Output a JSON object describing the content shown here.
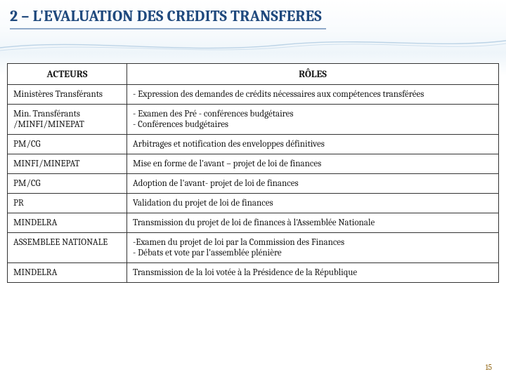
{
  "title": "2 – L'EVALUATION DES CREDITS TRANSFERES",
  "headers": {
    "actors": "ACTEURS",
    "roles": "RÔLES"
  },
  "rows": [
    {
      "actor": "Ministères Transférants",
      "role": "- Expression des demandes de crédits nécessaires aux compétences transférées"
    },
    {
      "actor": "Min. Transférants /MINFI/MINEPAT",
      "role": "- Examen des Pré - conférences budgétaires\n- Conférences budgétaires"
    },
    {
      "actor": "PM/CG",
      "role": " Arbitrages et notification des enveloppes définitives"
    },
    {
      "actor": "MINFI/MINEPAT",
      "role": "Mise en forme de l'avant – projet de loi de finances"
    },
    {
      "actor": "PM/CG",
      "role": "Adoption de l'avant- projet de loi de  finances"
    },
    {
      "actor": "PR",
      "role": " Validation du projet de loi de finances"
    },
    {
      "actor": "MINDELRA",
      "role": " Transmission du projet de loi de finances à l'Assemblée Nationale"
    },
    {
      "actor": "ASSEMBLEE NATIONALE",
      "role": "-Examen du projet de loi  par la Commission des Finances\n- Débats et vote par  l'assemblée plénière"
    },
    {
      "actor": "MINDELRA",
      "role": " Transmission de la loi votée à la Présidence de la République"
    }
  ],
  "page_number": "15",
  "colors": {
    "title": "#1f497d",
    "underline": "#8fa9c9",
    "border": "#333333",
    "wave": "#bcd3e6"
  }
}
